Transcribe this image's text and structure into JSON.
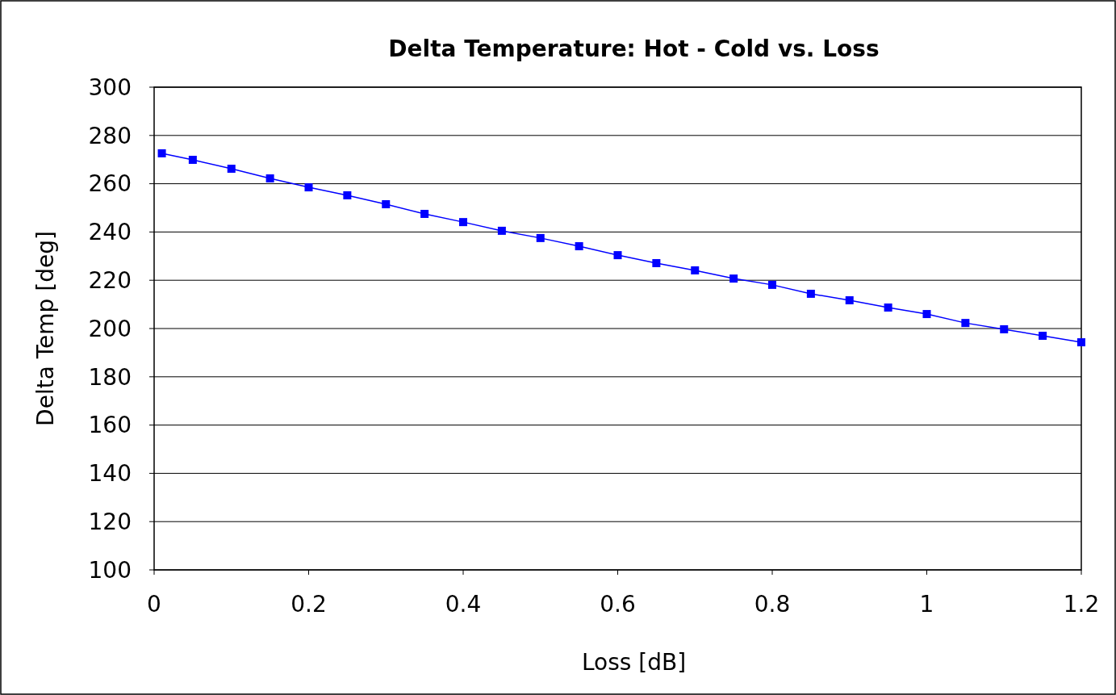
{
  "chart_data": {
    "type": "line",
    "title": "Delta Temperature: Hot - Cold vs. Loss",
    "xlabel": "Loss [dB]",
    "ylabel": "Delta Temp [deg]",
    "x": [
      0.01,
      0.05,
      0.1,
      0.15,
      0.2,
      0.25,
      0.3,
      0.35,
      0.4,
      0.45,
      0.5,
      0.55,
      0.6,
      0.65,
      0.7,
      0.75,
      0.8,
      0.85,
      0.9,
      0.95,
      1.0,
      1.05,
      1.1,
      1.15,
      1.2
    ],
    "series": [
      {
        "color": "#0000ff",
        "values": [
          272.6,
          269.9,
          266.2,
          262.2,
          258.5,
          255.2,
          251.5,
          247.5,
          244.1,
          240.5,
          237.5,
          234.1,
          230.4,
          227.1,
          224.1,
          220.7,
          218.1,
          214.4,
          211.7,
          208.7,
          206.0,
          202.3,
          199.7,
          197.0,
          194.3
        ]
      }
    ],
    "xlim": [
      0,
      1.2
    ],
    "xticks": [
      0,
      0.2,
      0.4,
      0.6,
      0.8,
      1,
      1.2
    ],
    "ylim": [
      100,
      300
    ],
    "yticks": [
      100,
      120,
      140,
      160,
      180,
      200,
      220,
      240,
      260,
      280,
      300
    ],
    "grid": "y",
    "marker": "square",
    "line_style": "solid"
  }
}
